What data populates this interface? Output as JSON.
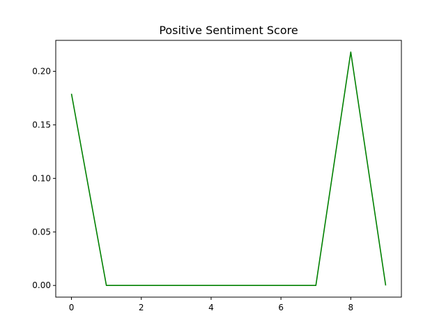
{
  "chart_data": {
    "type": "line",
    "title": "Positive Sentiment Score",
    "xlabel": "",
    "ylabel": "",
    "x": [
      0,
      1,
      2,
      3,
      4,
      5,
      6,
      7,
      8,
      9
    ],
    "series": [
      {
        "values": [
          0.179,
          0.0,
          0.0,
          0.0,
          0.0,
          0.0,
          0.0,
          0.0,
          0.218,
          0.0
        ],
        "color": "#008000"
      }
    ],
    "xlim": [
      -0.45,
      9.45
    ],
    "ylim": [
      -0.0109,
      0.2289
    ],
    "xticks": [
      0,
      2,
      4,
      6,
      8
    ],
    "xtick_labels": [
      "0",
      "2",
      "4",
      "6",
      "8"
    ],
    "yticks": [
      0.0,
      0.05,
      0.1,
      0.15,
      0.2
    ],
    "ytick_labels": [
      "0.00",
      "0.05",
      "0.10",
      "0.15",
      "0.20"
    ],
    "grid": false,
    "legend": "none"
  }
}
